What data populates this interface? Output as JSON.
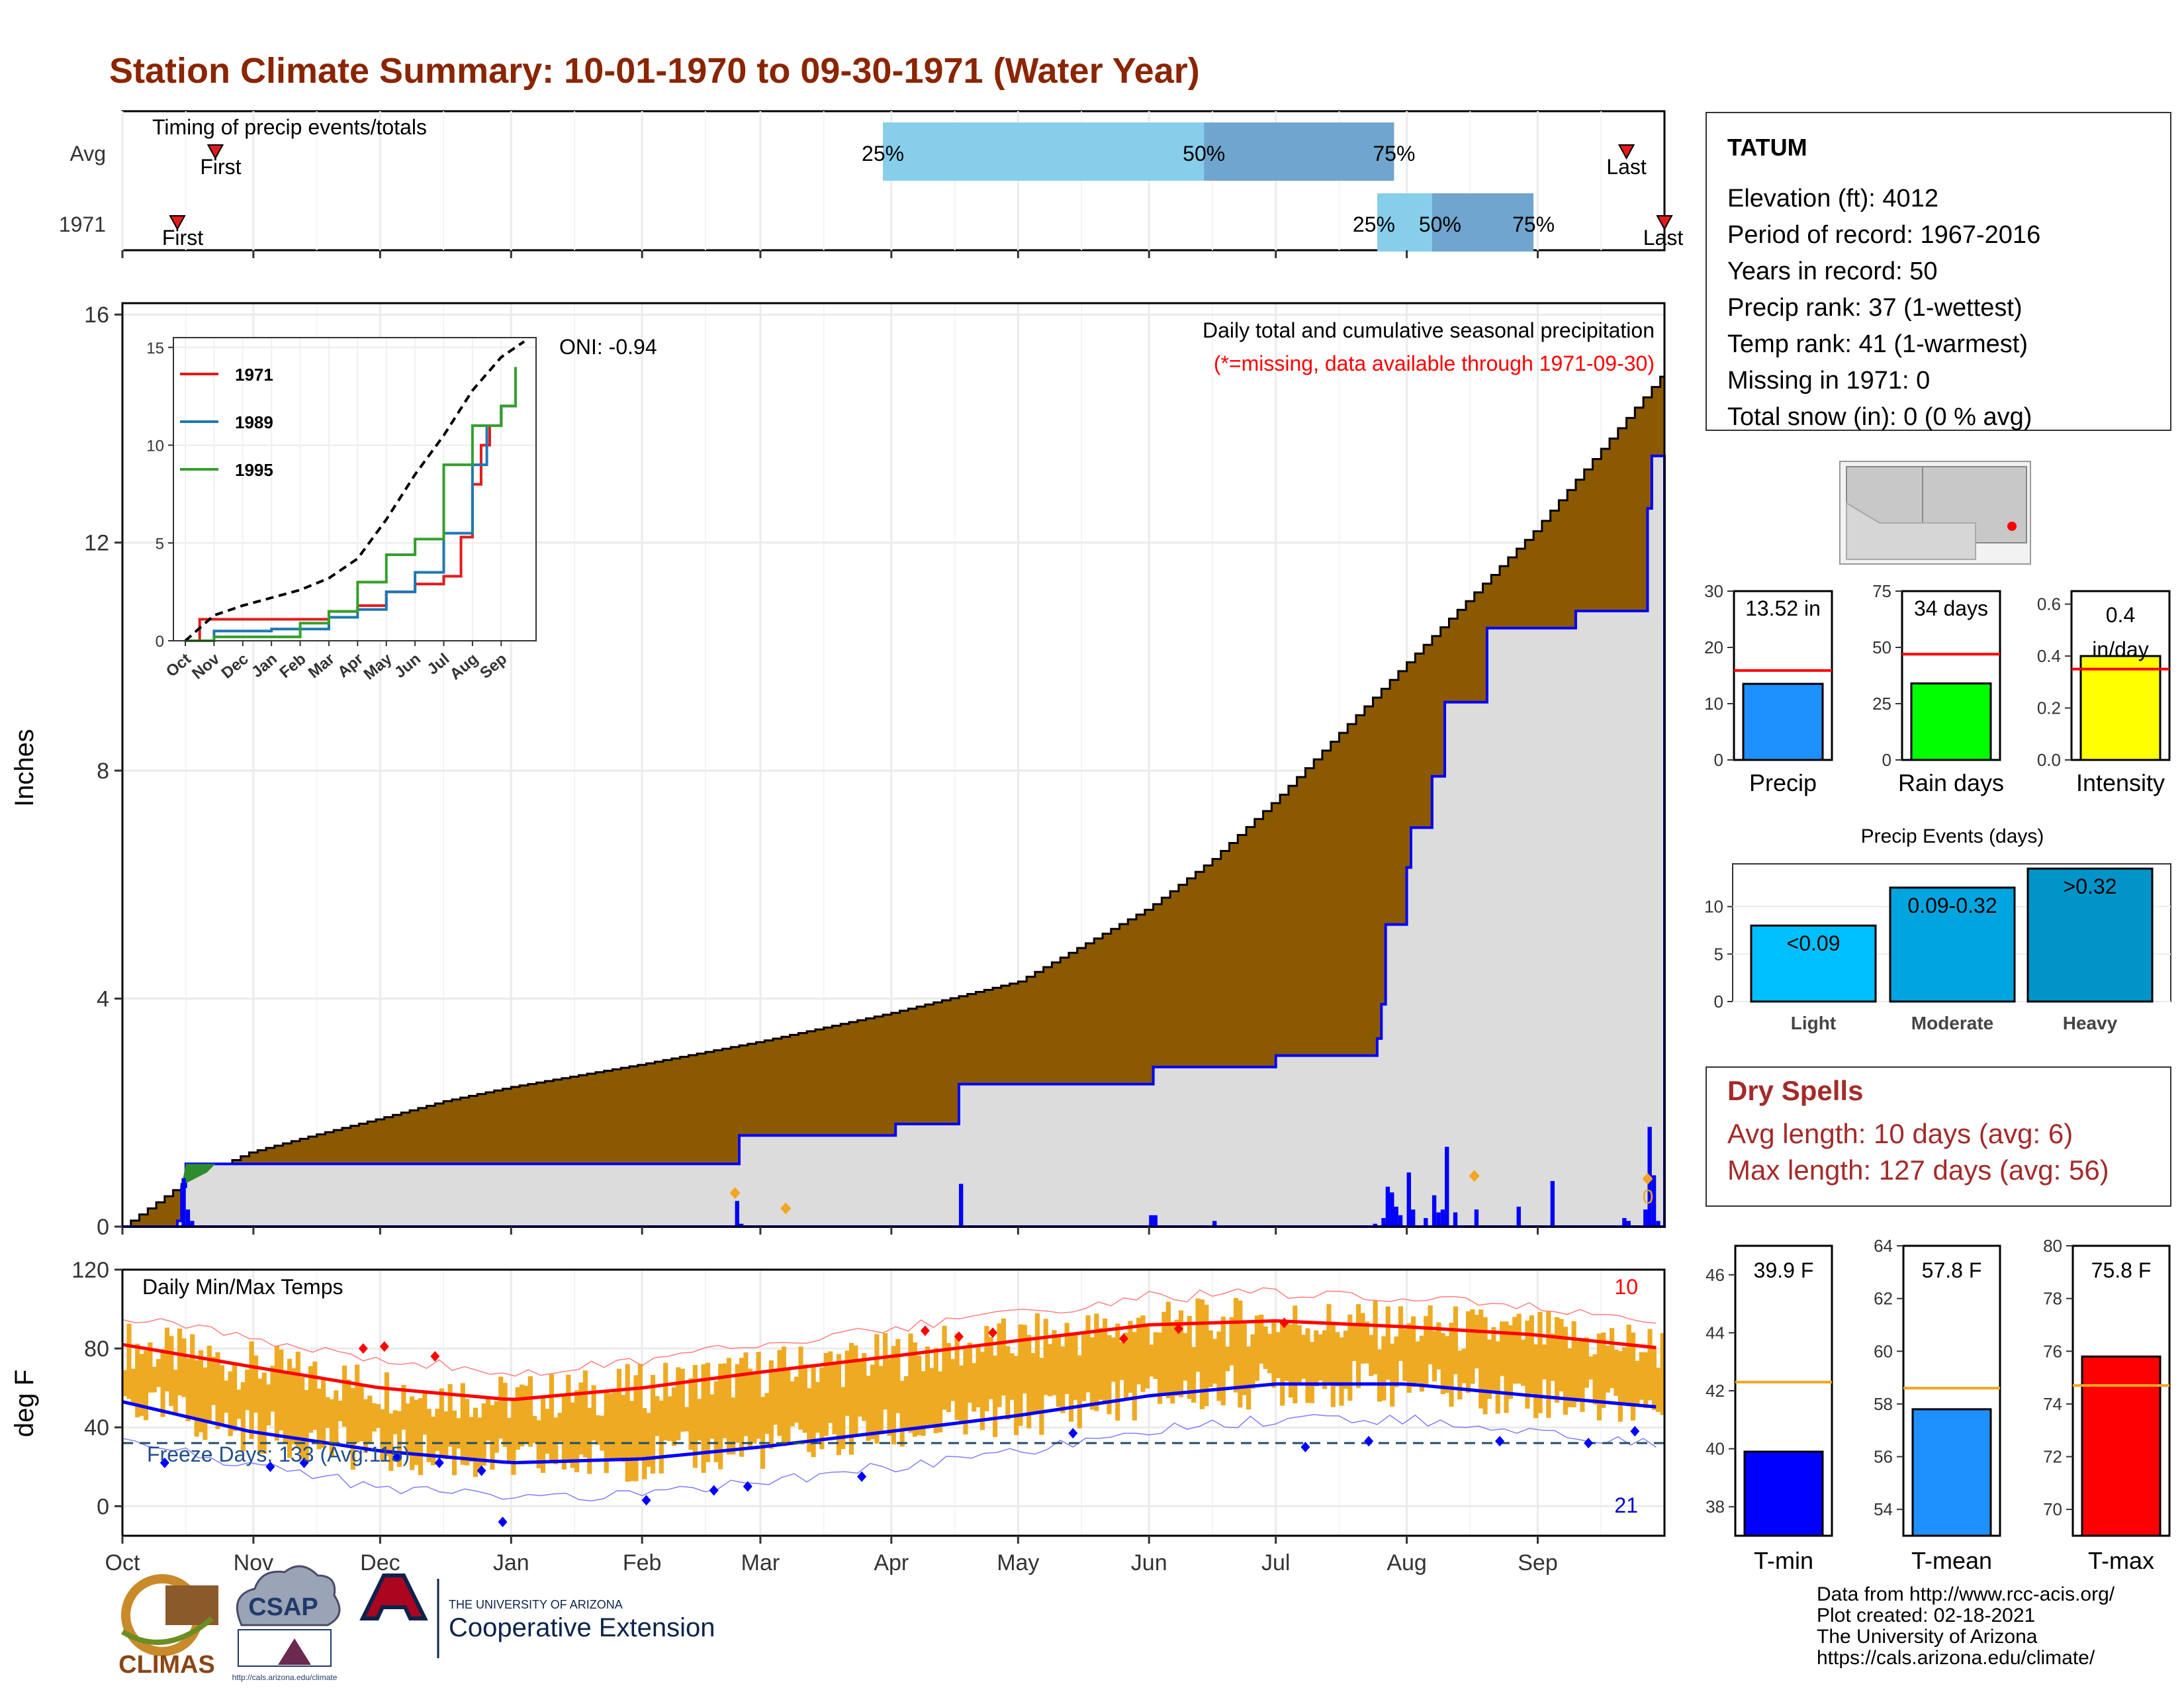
{
  "title": "Station Climate Summary: 10-01-1970 to 09-30-1971 (Water Year)",
  "colors": {
    "title": "#8B2500",
    "brown": "#8B5A00",
    "gray_fill": "#DCDCDC",
    "blue": "#0000FF",
    "red": "#FF0000",
    "orange": "#EEAA22",
    "light_blue": "#87CEEB",
    "steel_blue": "#6FA5CE",
    "dry_red": "#A52A2A"
  },
  "month_ticks": [
    "Oct",
    "Nov",
    "Dec",
    "Jan",
    "Feb",
    "Mar",
    "Apr",
    "May",
    "Jun",
    "Jul",
    "Aug",
    "Sep"
  ],
  "timing": {
    "title": "Timing of precip events/totals",
    "rows": [
      "Avg",
      "1971"
    ],
    "avg": {
      "first_label": "First",
      "last_label": "Last",
      "first_day": 22,
      "last_day": 356,
      "pct_labels": [
        "25%",
        "50%",
        "75%"
      ],
      "p25_day": 180,
      "p50_day": 256,
      "p75_day": 301
    },
    "y1971": {
      "first_label": "First",
      "last_label": "Last",
      "first_day": 13,
      "last_day": 365,
      "pct_labels": [
        "25%",
        "50%",
        "75%"
      ],
      "p25_day": 297,
      "p50_day": 310,
      "p75_day": 334
    }
  },
  "precip": {
    "header": "Daily total and cumulative seasonal precipitation",
    "note": "(*=missing, data available through 1971-09-30)",
    "oni": "ONI: -0.94",
    "ylabel": "Inches",
    "y_ticks": [
      "0",
      "4",
      "8",
      "12",
      "16"
    ],
    "missing_marker": "0"
  },
  "inset": {
    "y_ticks": [
      "0",
      "5",
      "10",
      "15"
    ],
    "x_ticks": [
      "Oct",
      "Nov",
      "Dec",
      "Jan",
      "Feb",
      "Mar",
      "Apr",
      "May",
      "Jun",
      "Jul",
      "Aug",
      "Sep"
    ],
    "legend": [
      "1971",
      "1989",
      "1995"
    ]
  },
  "temps": {
    "title": "Daily Min/Max Temps",
    "ylabel": "deg F",
    "y_ticks": [
      "0",
      "40",
      "80",
      "120"
    ],
    "freeze_text": "Freeze Days: 133 (Avg:115)",
    "count_hi": "10",
    "count_lo": "21"
  },
  "station": {
    "name": "TATUM",
    "lines": [
      "Elevation (ft): 4012",
      "Period of record: 1967-2016",
      "Years in record: 50",
      "Precip rank: 37 (1-wettest)",
      "Temp rank: 41 (1-warmest)",
      "Missing in 1971: 0",
      "Total snow (in): 0 (0 % avg)"
    ]
  },
  "summary_bars": {
    "precip": {
      "label": "Precip",
      "value_text": "13.52 in",
      "ticks": [
        "0",
        "10",
        "20",
        "30"
      ]
    },
    "rain_days": {
      "label": "Rain days",
      "value_text": "34 days",
      "ticks": [
        "0",
        "25",
        "50",
        "75"
      ]
    },
    "intensity": {
      "label": "Intensity",
      "value_text": "0.4",
      "value_unit": "in/day",
      "ticks": [
        "0.0",
        "0.2",
        "0.4",
        "0.6"
      ]
    }
  },
  "events": {
    "title": "Precip Events (days)",
    "labels": [
      "Light",
      "Moderate",
      "Heavy"
    ],
    "value_labels": [
      "<0.09",
      "0.09-0.32",
      ">0.32"
    ],
    "ticks": [
      "0",
      "5",
      "10"
    ]
  },
  "dry_spells": {
    "title": "Dry Spells",
    "avg_text": "Avg length: 10 days (avg: 6)",
    "max_text": "Max length: 127 days (avg: 56)"
  },
  "temp_bars": {
    "tmin": {
      "label": "T-min",
      "value_text": "39.9 F",
      "ticks": [
        "38",
        "40",
        "42",
        "44",
        "46"
      ]
    },
    "tmean": {
      "label": "T-mean",
      "value_text": "57.8 F",
      "ticks": [
        "54",
        "56",
        "58",
        "60",
        "62",
        "64"
      ]
    },
    "tmax": {
      "label": "T-max",
      "value_text": "75.8 F",
      "ticks": [
        "70",
        "72",
        "74",
        "76",
        "78",
        "80"
      ]
    }
  },
  "footer": {
    "lines": [
      "Data from http://www.rcc-acis.org/",
      "Plot created: 02-18-2021",
      "The University of Arizona",
      "https://cals.arizona.edu/climate/"
    ],
    "climas": "CLIMAS",
    "csap": "CSAP",
    "csap_url": "http://cals.arizona.edu/climate",
    "ua_small": "THE UNIVERSITY OF ARIZONA",
    "ua_big": "Cooperative Extension"
  },
  "chart_data": [
    {
      "type": "area",
      "name": "cumulative precipitation",
      "xlabel": "",
      "ylabel": "Inches",
      "ylim": [
        0,
        16.2
      ],
      "x_unit": "day of water year (0 = Oct 1)",
      "avg_cumulative": [
        [
          0,
          0
        ],
        [
          15,
          0.8
        ],
        [
          30,
          1.3
        ],
        [
          45,
          1.6
        ],
        [
          61,
          1.9
        ],
        [
          76,
          2.2
        ],
        [
          92,
          2.45
        ],
        [
          123,
          2.85
        ],
        [
          151,
          3.25
        ],
        [
          182,
          3.75
        ],
        [
          212,
          4.3
        ],
        [
          243,
          5.6
        ],
        [
          258,
          6.45
        ],
        [
          273,
          7.5
        ],
        [
          304,
          9.9
        ],
        [
          334,
          12.2
        ],
        [
          365,
          15.0
        ]
      ],
      "y1971_cumulative": [
        [
          0,
          0
        ],
        [
          13,
          0.1
        ],
        [
          14,
          0.7
        ],
        [
          15,
          1.1
        ],
        [
          145,
          1.1
        ],
        [
          146,
          1.6
        ],
        [
          182,
          1.6
        ],
        [
          183,
          1.8
        ],
        [
          198,
          2.5
        ],
        [
          243,
          2.5
        ],
        [
          244,
          2.8
        ],
        [
          273,
          3.0
        ],
        [
          296,
          3.0
        ],
        [
          297,
          3.3
        ],
        [
          298,
          3.9
        ],
        [
          299,
          5.3
        ],
        [
          304,
          6.3
        ],
        [
          305,
          7.0
        ],
        [
          310,
          7.9
        ],
        [
          313,
          9.2
        ],
        [
          322,
          9.2
        ],
        [
          323,
          10.5
        ],
        [
          343,
          10.5
        ],
        [
          344,
          10.8
        ],
        [
          360,
          10.8
        ],
        [
          361,
          12.6
        ],
        [
          362,
          13.52
        ],
        [
          365,
          13.52
        ]
      ],
      "daily_precip": [
        [
          14,
          0.85
        ],
        [
          15,
          0.3
        ],
        [
          16,
          0.1
        ],
        [
          145,
          0.45
        ],
        [
          146,
          0.05
        ],
        [
          198,
          0.75
        ],
        [
          243,
          0.2
        ],
        [
          244,
          0.2
        ],
        [
          258,
          0.1
        ],
        [
          296,
          0.05
        ],
        [
          298,
          0.15
        ],
        [
          299,
          0.7
        ],
        [
          300,
          0.6
        ],
        [
          301,
          0.35
        ],
        [
          302,
          0.2
        ],
        [
          304,
          0.95
        ],
        [
          305,
          0.3
        ],
        [
          308,
          0.15
        ],
        [
          310,
          0.55
        ],
        [
          311,
          0.25
        ],
        [
          312,
          0.3
        ],
        [
          313,
          1.4
        ],
        [
          315,
          0.25
        ],
        [
          320,
          0.3
        ],
        [
          330,
          0.35
        ],
        [
          338,
          0.8
        ],
        [
          355,
          0.15
        ],
        [
          356,
          0.1
        ],
        [
          360,
          0.3
        ],
        [
          361,
          1.75
        ],
        [
          362,
          0.9
        ],
        [
          363,
          0.1
        ]
      ]
    },
    {
      "type": "line",
      "name": "cumulative precipitation inset",
      "ylim": [
        0,
        15
      ],
      "series": [
        {
          "name": "1971",
          "color": "#E31A1C",
          "values": [
            [
              0,
              0
            ],
            [
              0.5,
              1.1
            ],
            [
              4,
              1.1
            ],
            [
              5,
              1.5
            ],
            [
              6,
              1.8
            ],
            [
              7,
              2.5
            ],
            [
              8,
              2.9
            ],
            [
              9,
              3.3
            ],
            [
              9.6,
              5.3
            ],
            [
              10,
              8
            ],
            [
              10.3,
              10
            ],
            [
              10.6,
              11
            ],
            [
              11,
              12
            ],
            [
              11.5,
              13.5
            ]
          ]
        },
        {
          "name": "1989",
          "color": "#1F78B4",
          "values": [
            [
              0,
              0
            ],
            [
              1,
              0.5
            ],
            [
              3,
              0.6
            ],
            [
              5,
              1.2
            ],
            [
              6,
              1.6
            ],
            [
              7,
              2.5
            ],
            [
              8,
              3.5
            ],
            [
              9,
              5.5
            ],
            [
              10,
              9
            ],
            [
              10.5,
              11
            ],
            [
              11,
              12
            ],
            [
              11.5,
              13.6
            ]
          ]
        },
        {
          "name": "1995",
          "color": "#33A02C",
          "values": [
            [
              0,
              0
            ],
            [
              1,
              0.2
            ],
            [
              4,
              0.9
            ],
            [
              5,
              1.5
            ],
            [
              6,
              3
            ],
            [
              7,
              4.4
            ],
            [
              8,
              5.2
            ],
            [
              9,
              9
            ],
            [
              10,
              11
            ],
            [
              11,
              12
            ],
            [
              11.5,
              14
            ]
          ]
        },
        {
          "name": "avg",
          "values": [
            [
              0,
              0
            ],
            [
              1,
              1.3
            ],
            [
              2,
              1.8
            ],
            [
              3,
              2.2
            ],
            [
              4,
              2.6
            ],
            [
              5,
              3.2
            ],
            [
              6,
              4.2
            ],
            [
              7,
              6.2
            ],
            [
              8,
              8.5
            ],
            [
              9,
              10.5
            ],
            [
              10,
              12.8
            ],
            [
              11,
              14.5
            ],
            [
              11.8,
              15.3
            ]
          ]
        }
      ]
    },
    {
      "type": "line",
      "name": "Daily Min/Max Temps",
      "ylabel": "deg F",
      "ylim": [
        -15,
        120
      ],
      "freeze_line": 32,
      "normal_max": [
        [
          0,
          82
        ],
        [
          30,
          71
        ],
        [
          61,
          60
        ],
        [
          92,
          54
        ],
        [
          123,
          60
        ],
        [
          151,
          68
        ],
        [
          182,
          76
        ],
        [
          212,
          84
        ],
        [
          243,
          92
        ],
        [
          273,
          94
        ],
        [
          304,
          91
        ],
        [
          334,
          87
        ],
        [
          365,
          80
        ]
      ],
      "normal_min": [
        [
          0,
          53
        ],
        [
          30,
          38
        ],
        [
          61,
          28
        ],
        [
          92,
          22
        ],
        [
          123,
          24
        ],
        [
          151,
          30
        ],
        [
          182,
          38
        ],
        [
          212,
          46
        ],
        [
          243,
          56
        ],
        [
          273,
          62
        ],
        [
          304,
          62
        ],
        [
          334,
          56
        ],
        [
          365,
          50
        ]
      ]
    },
    {
      "type": "bar",
      "name": "Precip",
      "categories": [
        "1971"
      ],
      "values": [
        13.52
      ],
      "avg": 15.9,
      "ylim": [
        0,
        30
      ]
    },
    {
      "type": "bar",
      "name": "Rain days",
      "categories": [
        "1971"
      ],
      "values": [
        34
      ],
      "avg": 47,
      "ylim": [
        0,
        75
      ]
    },
    {
      "type": "bar",
      "name": "Intensity",
      "categories": [
        "1971"
      ],
      "values": [
        0.4
      ],
      "avg": 0.35,
      "ylim": [
        0,
        0.65
      ]
    },
    {
      "type": "bar",
      "name": "Precip Events (days)",
      "categories": [
        "Light",
        "Moderate",
        "Heavy"
      ],
      "values": [
        8,
        12,
        14
      ],
      "ylim": [
        0,
        14.5
      ]
    },
    {
      "type": "bar",
      "name": "T-min",
      "categories": [
        "1971"
      ],
      "values": [
        39.9
      ],
      "avg": 42.3,
      "ylim": [
        37,
        47
      ]
    },
    {
      "type": "bar",
      "name": "T-mean",
      "categories": [
        "1971"
      ],
      "values": [
        57.8
      ],
      "avg": 58.6,
      "ylim": [
        53,
        64
      ]
    },
    {
      "type": "bar",
      "name": "T-max",
      "categories": [
        "1971"
      ],
      "values": [
        75.8
      ],
      "avg": 74.7,
      "ylim": [
        69,
        80
      ]
    }
  ]
}
